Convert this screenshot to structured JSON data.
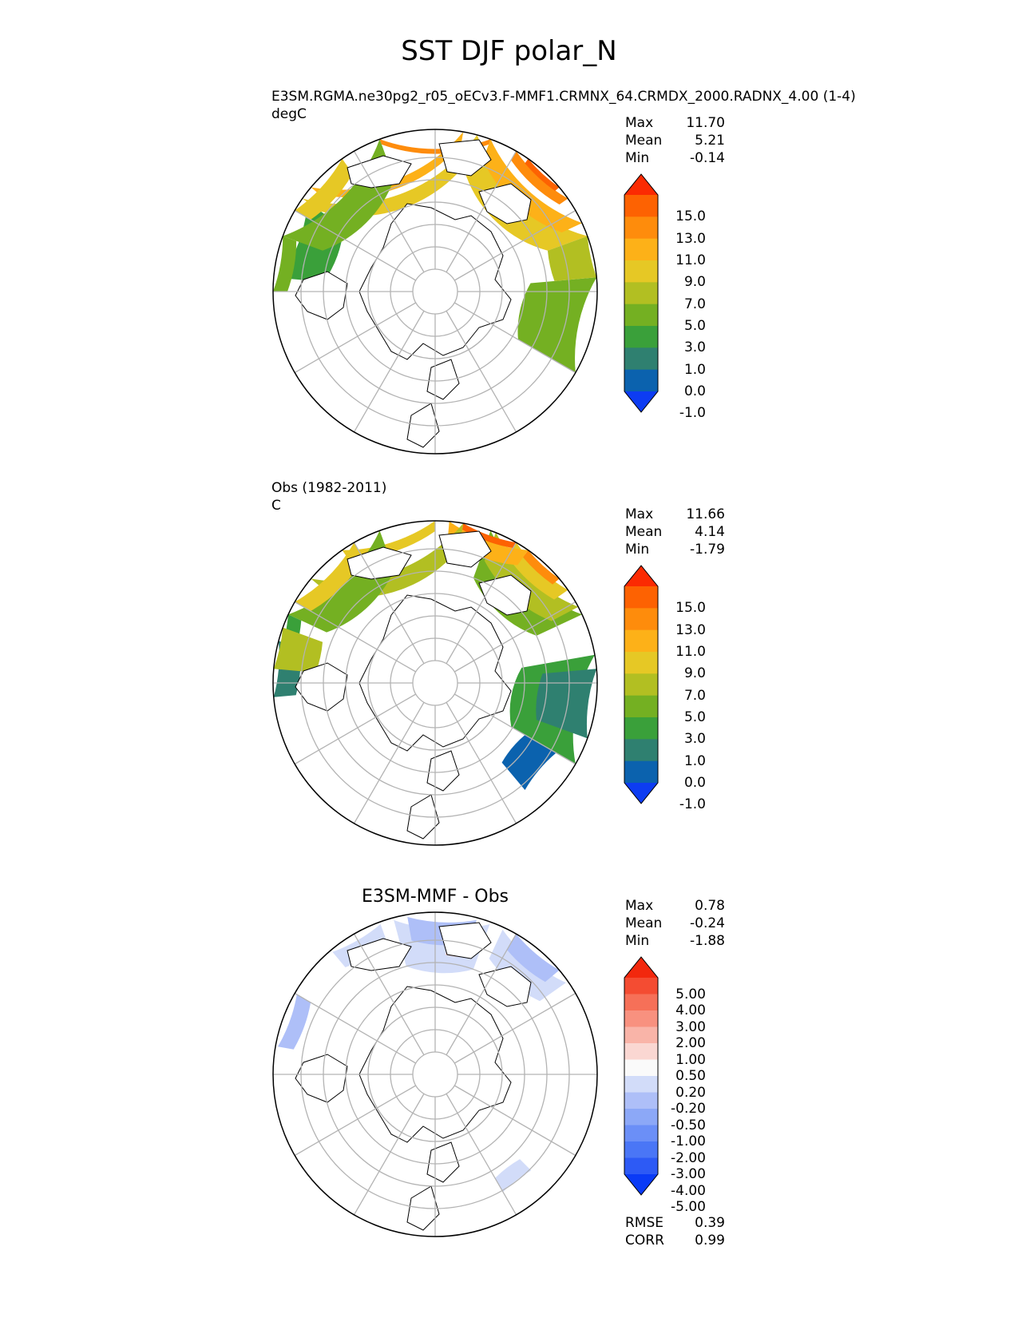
{
  "title": "SST DJF polar_N",
  "colors": {
    "abs_levels": [
      "#0d3cf2",
      "#0b62ae",
      "#2f8070",
      "#3aa03a",
      "#74b022",
      "#b2bf22",
      "#e6c825",
      "#fdb118",
      "#fe8c0c",
      "#fd6202",
      "#fb2a02"
    ],
    "diff_levels": [
      "#0a3bf6",
      "#2d5af5",
      "#4a76f6",
      "#6b8ff7",
      "#8ca8f7",
      "#aebff8",
      "#d2dcf9",
      "#fafafa",
      "#fad7d2",
      "#f9b4a8",
      "#f8917f",
      "#f67058",
      "#f44c32",
      "#f2280d"
    ],
    "land_fill": "#ffffff",
    "grid": "#b3b3b3"
  },
  "panels": [
    {
      "id": "model",
      "label": "E3SM.RGMA.ne30pg2_r05_oECv3.F-MMF1.CRMNX_64.CRMDX_2000.RADNX_4.00 (1-4)",
      "units": "degC",
      "stats": [
        {
          "label": "Max",
          "value": "11.70"
        },
        {
          "label": "Mean",
          "value": "5.21"
        },
        {
          "label": "Min",
          "value": "-0.14"
        }
      ],
      "colorbar_ticks": [
        "15.0",
        "13.0",
        "11.0",
        "9.0",
        "7.0",
        "5.0",
        "3.0",
        "1.0",
        "0.0",
        "-1.0"
      ]
    },
    {
      "id": "obs",
      "label": "Obs (1982-2011)",
      "units": "C",
      "stats": [
        {
          "label": "Max",
          "value": "11.66"
        },
        {
          "label": "Mean",
          "value": "4.14"
        },
        {
          "label": "Min",
          "value": "-1.79"
        }
      ],
      "colorbar_ticks": [
        "15.0",
        "13.0",
        "11.0",
        "9.0",
        "7.0",
        "5.0",
        "3.0",
        "1.0",
        "0.0",
        "-1.0"
      ]
    },
    {
      "id": "diff",
      "title": "E3SM-MMF - Obs",
      "stats": [
        {
          "label": "Max",
          "value": "0.78"
        },
        {
          "label": "Mean",
          "value": "-0.24"
        },
        {
          "label": "Min",
          "value": "-1.88"
        }
      ],
      "colorbar_ticks": [
        "5.00",
        "4.00",
        "3.00",
        "2.00",
        "1.00",
        "0.50",
        "0.20",
        "-0.20",
        "-0.50",
        "-1.00",
        "-2.00",
        "-3.00",
        "-4.00",
        "-5.00"
      ],
      "metrics": [
        {
          "label": "RMSE",
          "value": "0.39"
        },
        {
          "label": "CORR",
          "value": "0.99"
        }
      ]
    }
  ],
  "chart_data": [
    {
      "type": "heatmap",
      "projection": "north polar stereographic",
      "title": "E3SM.RGMA.ne30pg2_r05_oECv3.F-MMF1.CRMNX_64.CRMDX_2000.RADNX_4.00 (1-4)",
      "units": "degC",
      "levels": [
        -1.0,
        0.0,
        1.0,
        3.0,
        5.0,
        7.0,
        9.0,
        11.0,
        13.0,
        15.0
      ],
      "extend": "both",
      "max": 11.7,
      "mean": 5.21,
      "min": -0.14
    },
    {
      "type": "heatmap",
      "projection": "north polar stereographic",
      "title": "Obs (1982-2011)",
      "units": "C",
      "levels": [
        -1.0,
        0.0,
        1.0,
        3.0,
        5.0,
        7.0,
        9.0,
        11.0,
        13.0,
        15.0
      ],
      "extend": "both",
      "max": 11.66,
      "mean": 4.14,
      "min": -1.79
    },
    {
      "type": "heatmap",
      "projection": "north polar stereographic",
      "title": "E3SM-MMF - Obs",
      "levels": [
        -5.0,
        -4.0,
        -3.0,
        -2.0,
        -1.0,
        -0.5,
        -0.2,
        0.2,
        0.5,
        1.0,
        2.0,
        3.0,
        4.0,
        5.0
      ],
      "extend": "both",
      "max": 0.78,
      "mean": -0.24,
      "min": -1.88,
      "rmse": 0.39,
      "corr": 0.99
    }
  ]
}
